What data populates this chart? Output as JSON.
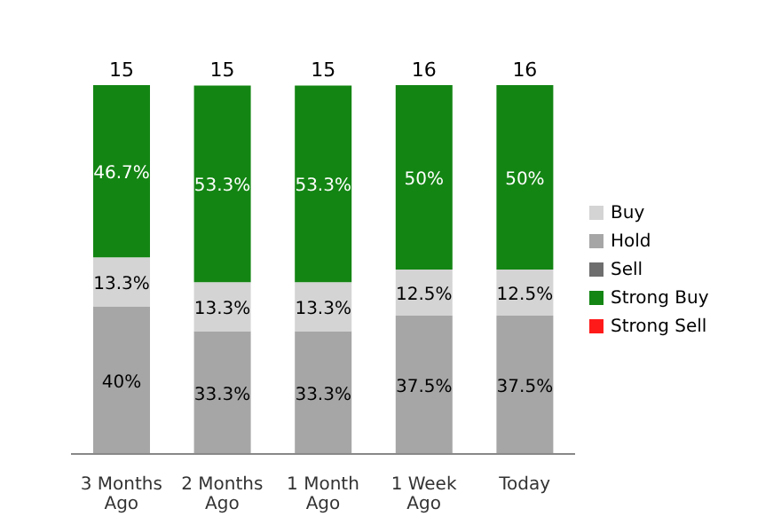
{
  "chart_data": {
    "type": "bar",
    "stacked": true,
    "categories": [
      "3 Months Ago",
      "2 Months Ago",
      "1 Month Ago",
      "1 Week Ago",
      "Today"
    ],
    "series": [
      {
        "name": "Hold",
        "color": "#a6a6a6",
        "values": [
          40,
          33.3,
          33.3,
          37.5,
          37.5
        ],
        "value_labels": [
          "40%",
          "33.3%",
          "33.3%",
          "37.5%",
          "37.5%"
        ]
      },
      {
        "name": "Buy",
        "color": "#d4d4d4",
        "values": [
          13.3,
          13.3,
          13.3,
          12.5,
          12.5
        ],
        "value_labels": [
          "13.3%",
          "13.3%",
          "13.3%",
          "12.5%",
          "12.5%"
        ]
      },
      {
        "name": "Strong Buy",
        "color": "#138513",
        "values": [
          46.7,
          53.3,
          53.3,
          50,
          50
        ],
        "value_labels": [
          "46.7%",
          "53.3%",
          "53.3%",
          "50%",
          "50%"
        ]
      },
      {
        "name": "Sell",
        "color": "#6e6e6e",
        "values": [
          null,
          null,
          null,
          null,
          null
        ]
      },
      {
        "name": "Strong Sell",
        "color": "#ff1a1a",
        "values": [
          null,
          null,
          null,
          null,
          null
        ]
      }
    ],
    "annotations": [
      "15",
      "15",
      "15",
      "16",
      "16"
    ],
    "legend": "right"
  }
}
